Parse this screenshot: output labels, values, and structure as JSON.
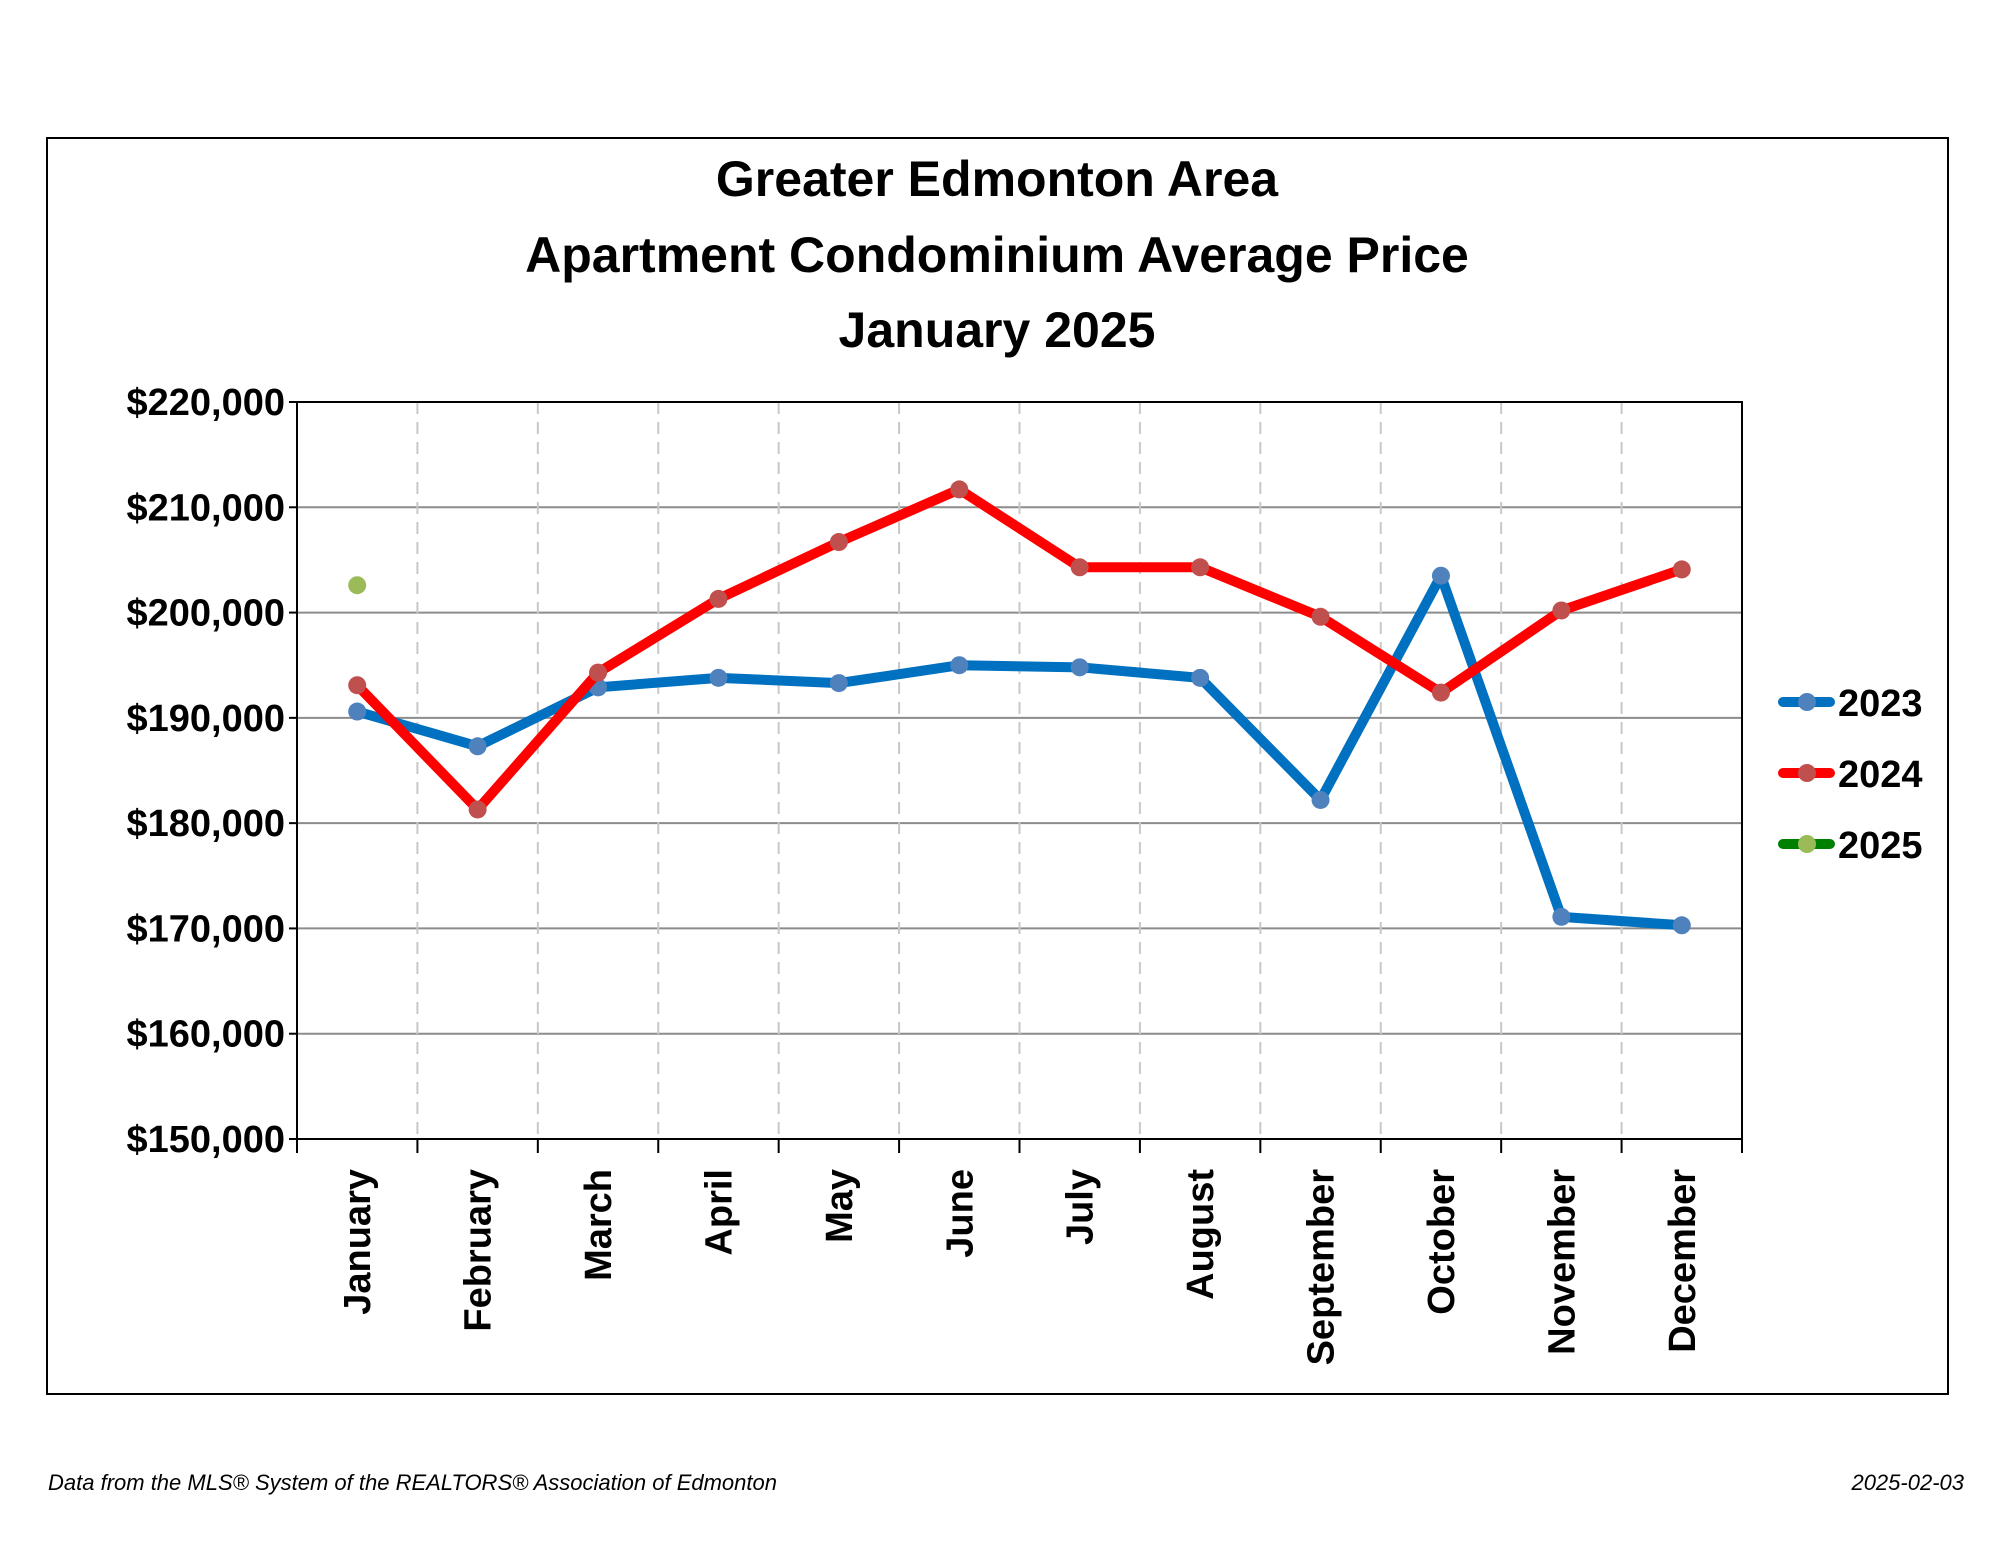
{
  "chart_data": {
    "type": "line",
    "title": [
      "Greater Edmonton Area",
      "Apartment Condominium Average Price",
      "January 2025"
    ],
    "categories": [
      "January",
      "February",
      "March",
      "April",
      "May",
      "June",
      "July",
      "August",
      "September",
      "October",
      "November",
      "December"
    ],
    "ylim": [
      150000,
      220000
    ],
    "yticks": [
      150000,
      160000,
      170000,
      180000,
      190000,
      200000,
      210000,
      220000
    ],
    "ytick_labels": [
      "$150,000",
      "$160,000",
      "$170,000",
      "$180,000",
      "$190,000",
      "$200,000",
      "$210,000",
      "$220,000"
    ],
    "grid": true,
    "legend_position": "right",
    "series": [
      {
        "name": "2023",
        "color": "#0070C0",
        "marker_color": "#4F81BD",
        "values": [
          190600,
          187300,
          192900,
          193800,
          193300,
          195000,
          194800,
          193800,
          182200,
          203500,
          171100,
          170300
        ]
      },
      {
        "name": "2024",
        "color": "#FF0000",
        "marker_color": "#C0504D",
        "values": [
          193100,
          181300,
          194300,
          201300,
          206700,
          211700,
          204300,
          204300,
          199600,
          192400,
          200200,
          204100
        ]
      },
      {
        "name": "2025",
        "color": "#008000",
        "marker_color": "#9BBB59",
        "values": [
          202600,
          null,
          null,
          null,
          null,
          null,
          null,
          null,
          null,
          null,
          null,
          null
        ]
      }
    ]
  },
  "footer": {
    "source": "Data from the MLS® System of the REALTORS® Association of Edmonton",
    "date": "2025-02-03"
  }
}
